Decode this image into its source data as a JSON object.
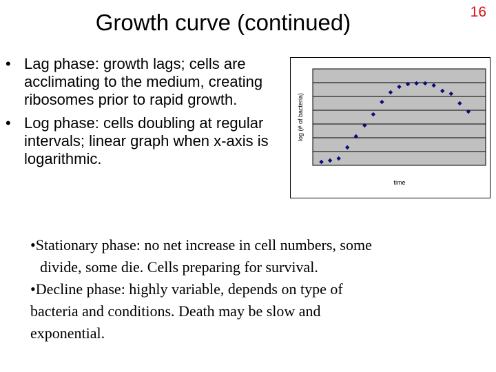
{
  "slide": {
    "number": "16",
    "title": "Growth curve (continued)"
  },
  "bullets": [
    {
      "marker": "•",
      "text": "Lag phase: growth lags; cells are acclimating to the medium, creating ribosomes prior to rapid growth."
    },
    {
      "marker": "•",
      "text": "Log phase: cells doubling at regular intervals; linear graph when x-axis is logarithmic."
    }
  ],
  "notes": {
    "stationary_line1": "•Stationary phase: no net increase in cell numbers, some",
    "stationary_line2": "divide, some die.  Cells preparing for survival.",
    "decline_line1": "•Decline phase: highly variable, depends on type of",
    "decline_line2": "bacteria and conditions. Death may be slow and",
    "decline_line3": "exponential."
  },
  "chart_data": {
    "type": "scatter",
    "xlabel": "time",
    "ylabel": "log (# of bacteria)",
    "grid": true,
    "plot_background": "#c0c0c0",
    "marker_color": "#0a0a7a",
    "xlim": [
      0,
      20
    ],
    "ylim": [
      0,
      7
    ],
    "x": [
      1,
      2,
      3,
      4,
      5,
      6,
      7,
      8,
      9,
      10,
      11,
      12,
      13,
      14,
      15,
      16,
      17,
      18
    ],
    "y": [
      0.25,
      0.35,
      0.5,
      1.3,
      2.1,
      2.9,
      3.7,
      4.6,
      5.3,
      5.7,
      5.9,
      5.95,
      5.95,
      5.8,
      5.4,
      5.2,
      4.5,
      3.9
    ]
  }
}
